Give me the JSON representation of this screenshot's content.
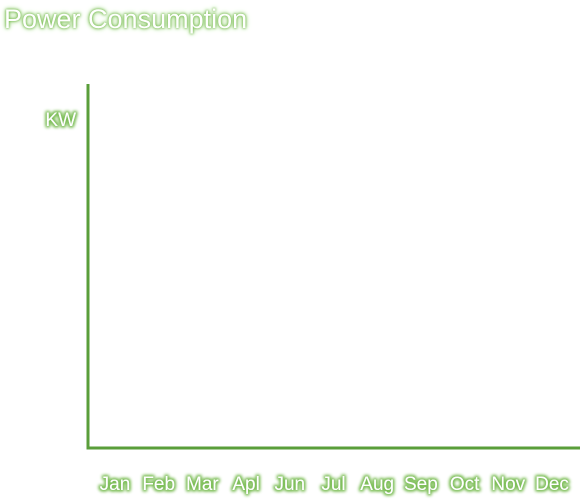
{
  "chart_data": {
    "type": "line",
    "title": "Power Consumption",
    "xlabel": "",
    "ylabel": "KW",
    "categories": [
      "Jan",
      "Feb",
      "Mar",
      "Apl",
      "Jun",
      "Jul",
      "Aug",
      "Sep",
      "Oct",
      "Nov",
      "Dec"
    ],
    "series": [],
    "grid": false,
    "colors": {
      "axis": "#5a9e3a",
      "text_glow": "#7fbf5a",
      "text_fill": "#ffffff"
    }
  }
}
